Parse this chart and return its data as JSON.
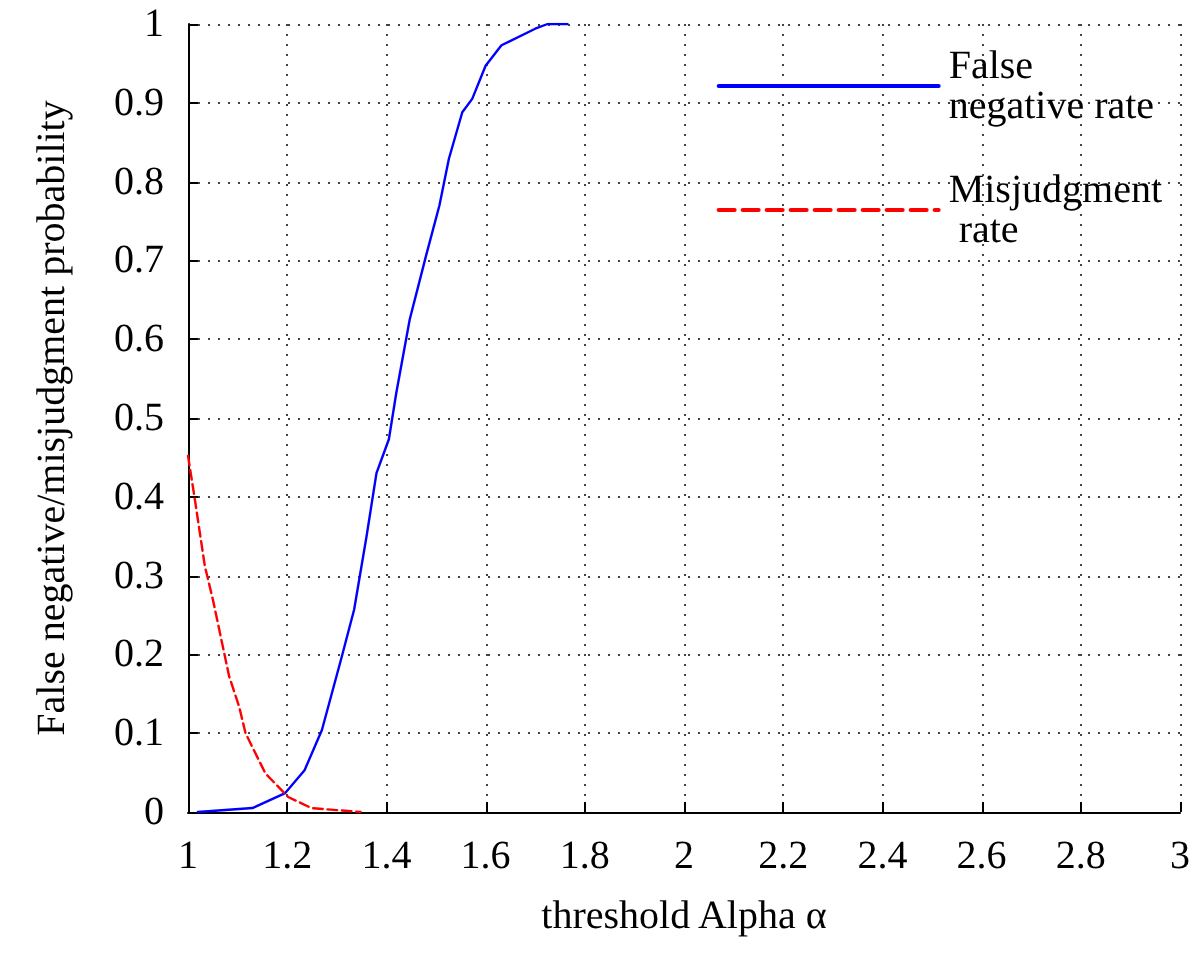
{
  "chart_data": {
    "type": "line",
    "xlabel": "threshold Alpha α",
    "ylabel": "False negative/misjudgment probability",
    "xlim": [
      1,
      3
    ],
    "xticks": [
      1,
      1.2,
      1.4,
      1.6,
      1.8,
      2,
      2.2,
      2.4,
      2.6,
      2.8,
      3
    ],
    "ylim": [
      0,
      1
    ],
    "yticks": [
      0,
      0.1,
      0.2,
      0.3,
      0.4,
      0.5,
      0.6,
      0.7,
      0.8,
      0.9,
      1
    ],
    "grid": true,
    "legend": "top right",
    "marker": "none",
    "series": [
      {
        "name": "False negative rate",
        "color": "#0000ff",
        "line_style": "solid",
        "x": [
          1.02,
          1.13,
          1.196,
          1.235,
          1.27,
          1.31,
          1.335,
          1.36,
          1.38,
          1.405,
          1.42,
          1.447,
          1.48,
          1.507,
          1.526,
          1.553,
          1.573,
          1.6,
          1.632,
          1.7,
          1.725,
          1.765
        ],
        "values": [
          0,
          0.005,
          0.024,
          0.053,
          0.104,
          0.197,
          0.257,
          0.35,
          0.43,
          0.473,
          0.532,
          0.625,
          0.706,
          0.77,
          0.829,
          0.888,
          0.905,
          0.947,
          0.973,
          0.994,
          1,
          1
        ]
      },
      {
        "name": "Misjudgment rate",
        "color": "#ff0000",
        "line_style": "dashed",
        "x": [
          1,
          1.013,
          1.034,
          1.05,
          1.083,
          1.103,
          1.116,
          1.156,
          1.202,
          1.249,
          1.348
        ],
        "values": [
          0.452,
          0.4,
          0.312,
          0.27,
          0.172,
          0.134,
          0.1,
          0.049,
          0.019,
          0.005,
          0
        ]
      }
    ]
  }
}
